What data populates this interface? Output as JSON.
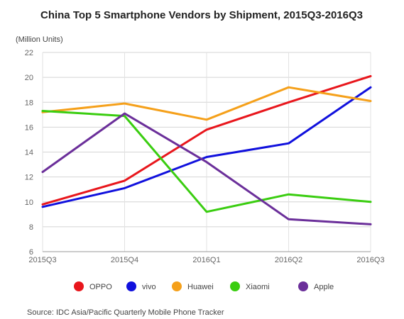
{
  "chart_data": {
    "type": "line",
    "title": "China Top 5 Smartphone Vendors by Shipment, 2015Q3-2016Q3",
    "ylabel": "(Million Units)",
    "xlabel": "",
    "categories": [
      "2015Q3",
      "2015Q4",
      "2016Q1",
      "2016Q2",
      "2016Q3"
    ],
    "ylim": [
      6,
      22
    ],
    "yticks": [
      6,
      8,
      10,
      12,
      14,
      16,
      18,
      20,
      22
    ],
    "grid": true,
    "legend_position": "bottom",
    "series": [
      {
        "name": "OPPO",
        "color": "#e8161c",
        "values": [
          9.8,
          11.7,
          15.8,
          18.0,
          20.1
        ]
      },
      {
        "name": "vivo",
        "color": "#1010dd",
        "values": [
          9.6,
          11.1,
          13.6,
          14.7,
          19.2
        ]
      },
      {
        "name": "Huawei",
        "color": "#f5a01a",
        "values": [
          17.2,
          17.9,
          16.6,
          19.2,
          18.1
        ]
      },
      {
        "name": "Xiaomi",
        "color": "#3acd10",
        "values": [
          17.3,
          16.9,
          9.2,
          10.6,
          10.0
        ]
      },
      {
        "name": "Apple",
        "color": "#6b2f9a",
        "values": [
          12.4,
          17.1,
          13.2,
          8.6,
          8.2
        ]
      }
    ],
    "source": "Source: IDC Asia/Pacific Quarterly Mobile Phone Tracker"
  }
}
